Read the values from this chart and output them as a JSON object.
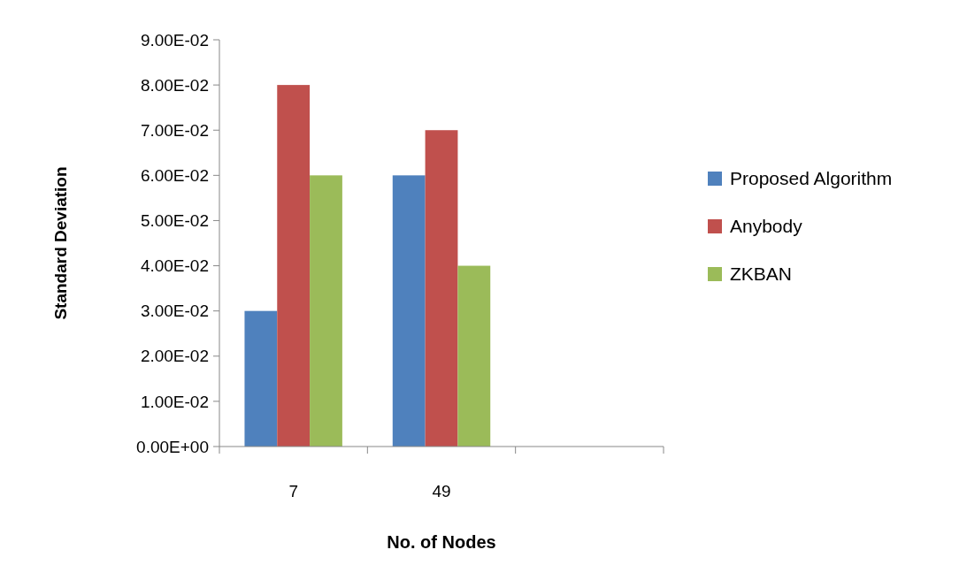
{
  "chart_data": {
    "type": "bar",
    "xlabel": "No. of Nodes",
    "ylabel": "Standard Deviation",
    "categories": [
      "7",
      "49",
      null
    ],
    "series": [
      {
        "name": "Proposed Algorithm",
        "color": "#4f81bd",
        "values": [
          0.03,
          0.06,
          null
        ]
      },
      {
        "name": "Anybody",
        "color": "#c0504d",
        "values": [
          0.08,
          0.07,
          null
        ]
      },
      {
        "name": "ZKBAN",
        "color": "#9bbb59",
        "values": [
          0.06,
          0.04,
          null
        ]
      }
    ],
    "ylim": [
      0,
      0.09
    ],
    "yticks": [
      {
        "value": 0,
        "label": "0.00E+00"
      },
      {
        "value": 0.01,
        "label": "1.00E-02"
      },
      {
        "value": 0.02,
        "label": "2.00E-02"
      },
      {
        "value": 0.03,
        "label": "3.00E-02"
      },
      {
        "value": 0.04,
        "label": "4.00E-02"
      },
      {
        "value": 0.05,
        "label": "5.00E-02"
      },
      {
        "value": 0.06,
        "label": "6.00E-02"
      },
      {
        "value": 0.07,
        "label": "7.00E-02"
      },
      {
        "value": 0.08,
        "label": "8.00E-02"
      },
      {
        "value": 0.09,
        "label": "9.00E-02"
      }
    ],
    "legend": "right"
  }
}
